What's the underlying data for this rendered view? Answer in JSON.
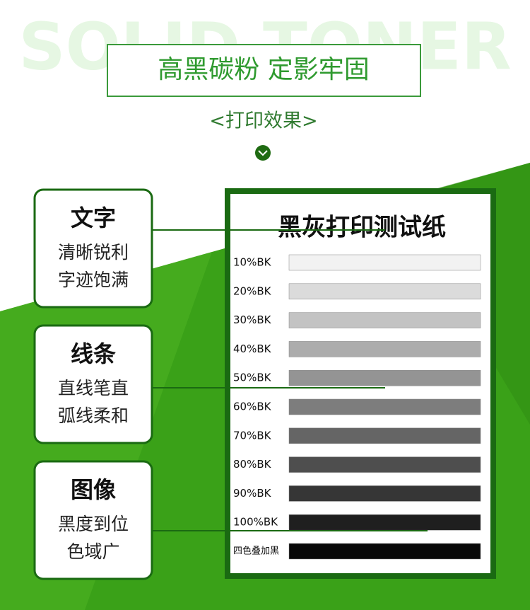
{
  "header": {
    "background_text": "SOLID TONER",
    "title": "高黑碳粉 定影牢固",
    "subtitle": "<打印效果>"
  },
  "features": [
    {
      "title": "文字",
      "lines": [
        "清晰锐利",
        "字迹饱满"
      ]
    },
    {
      "title": "线条",
      "lines": [
        "直线笔直",
        "弧线柔和"
      ]
    },
    {
      "title": "图像",
      "lines": [
        "黑度到位",
        "色域广"
      ]
    }
  ],
  "test_sheet": {
    "title": "黑灰打印测试纸",
    "rows": [
      "10%BK",
      "20%BK",
      "30%BK",
      "40%BK",
      "50%BK",
      "60%BK",
      "70%BK",
      "80%BK",
      "90%BK",
      "100%BK",
      "四色叠加黑"
    ]
  }
}
